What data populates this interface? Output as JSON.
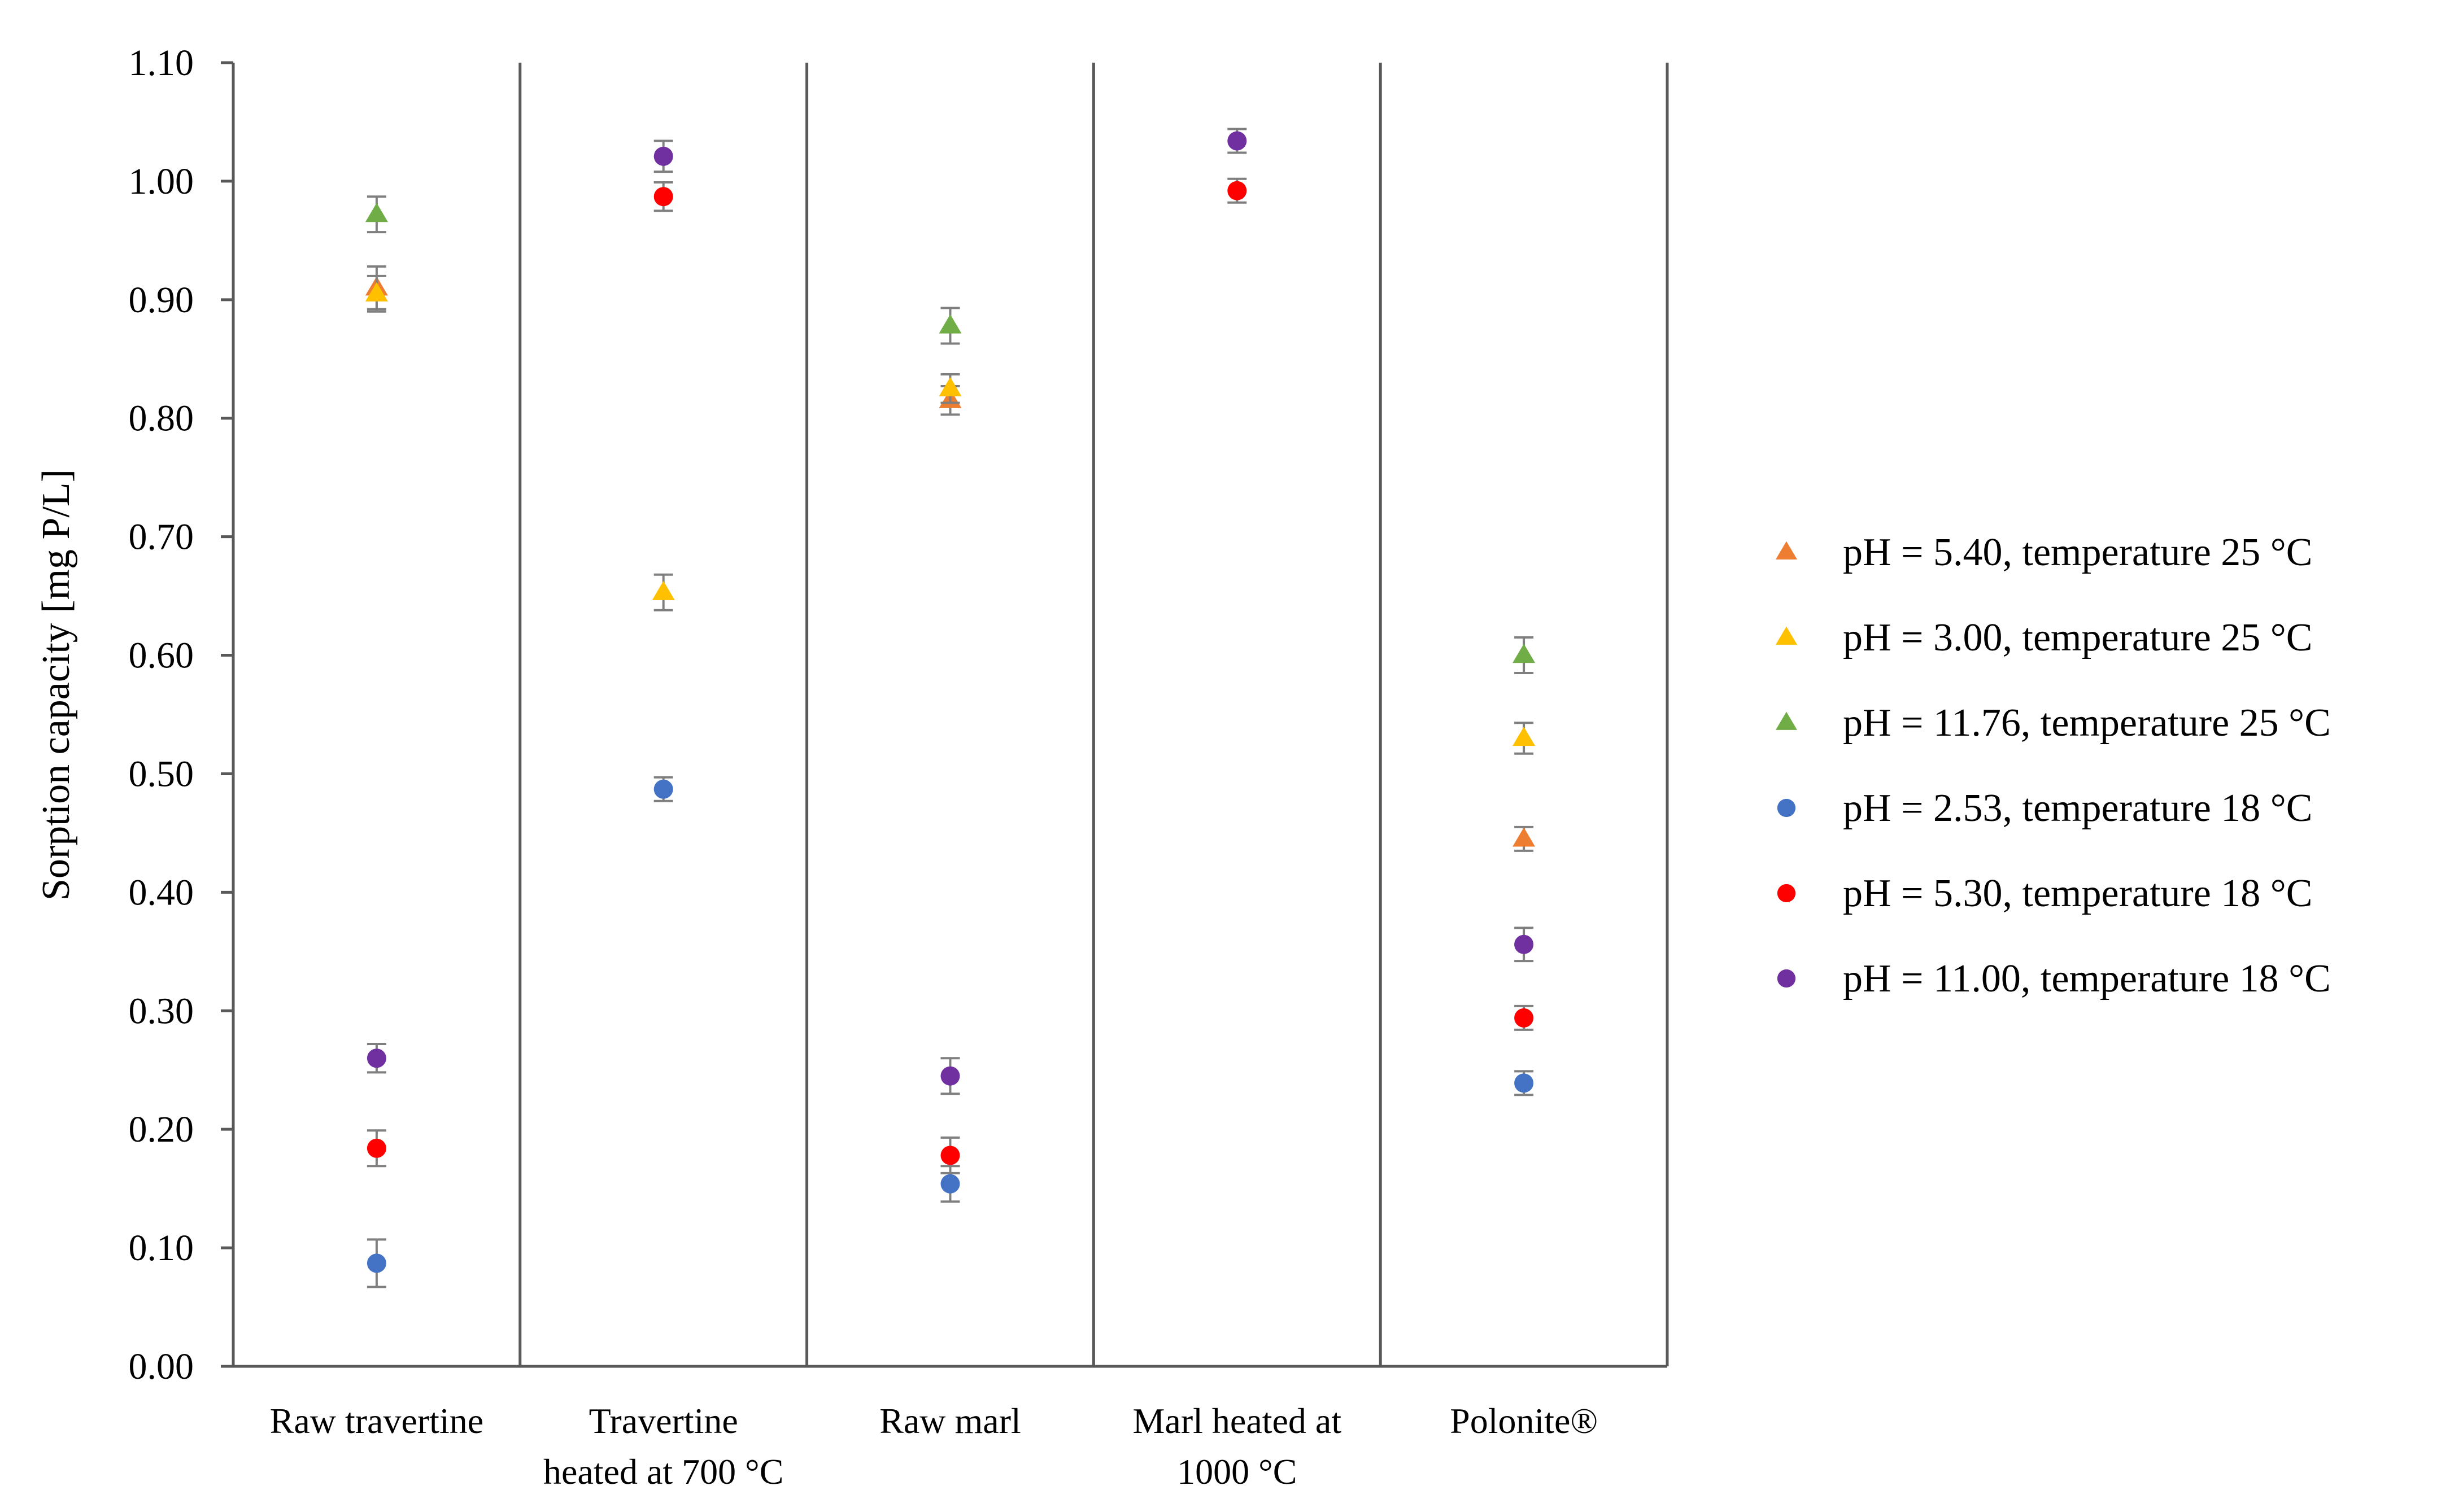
{
  "chart_data": {
    "type": "scatter",
    "title": "",
    "xlabel": "",
    "ylabel": "Sorption capacity [mg P/L]",
    "ylim": [
      0,
      1.1
    ],
    "yticks": [
      "0.00",
      "0.10",
      "0.20",
      "0.30",
      "0.40",
      "0.50",
      "0.60",
      "0.70",
      "0.80",
      "0.90",
      "1.00",
      "1.10"
    ],
    "grid": false,
    "legend_position": "right",
    "categories": [
      {
        "lines": [
          "Raw travertine"
        ]
      },
      {
        "lines": [
          "Travertine",
          "heated at 700 °C"
        ]
      },
      {
        "lines": [
          "Raw marl"
        ]
      },
      {
        "lines": [
          "Marl heated at",
          "1000 °C"
        ]
      },
      {
        "lines": [
          "Polonite®"
        ]
      }
    ],
    "series": [
      {
        "name": "pH = 5.40, temperature 25 °C",
        "marker": "triangle",
        "color": "#ED7D31",
        "values": [
          0.91,
          null,
          0.815,
          null,
          0.445
        ],
        "errors": [
          0.018,
          null,
          0.012,
          null,
          0.01
        ]
      },
      {
        "name": "pH = 3.00, temperature 25 °C",
        "marker": "triangle",
        "color": "#FFC000",
        "values": [
          0.905,
          0.653,
          0.825,
          null,
          0.53
        ],
        "errors": [
          0.015,
          0.015,
          0.012,
          null,
          0.013
        ]
      },
      {
        "name": "pH = 11.76,  temperature 25 °C",
        "marker": "triangle",
        "color": "#70AD47",
        "values": [
          0.972,
          null,
          0.878,
          null,
          0.6
        ],
        "errors": [
          0.015,
          null,
          0.015,
          null,
          0.015
        ]
      },
      {
        "name": "pH = 2.53, temperature 18 °C",
        "marker": "circle",
        "color": "#4472C4",
        "values": [
          0.087,
          0.487,
          0.154,
          null,
          0.239
        ],
        "errors": [
          0.02,
          0.01,
          0.015,
          null,
          0.01
        ]
      },
      {
        "name": "pH = 5.30, temperature 18 °C",
        "marker": "circle",
        "color": "#FF0000",
        "values": [
          0.184,
          0.987,
          0.178,
          0.992,
          0.294
        ],
        "errors": [
          0.015,
          0.012,
          0.015,
          0.01,
          0.01
        ]
      },
      {
        "name": "pH = 11.00, temperature 18 °C",
        "marker": "circle",
        "color": "#7030A0",
        "values": [
          0.26,
          1.021,
          0.245,
          1.034,
          0.356
        ],
        "errors": [
          0.012,
          0.013,
          0.015,
          0.01,
          0.014
        ]
      }
    ]
  }
}
